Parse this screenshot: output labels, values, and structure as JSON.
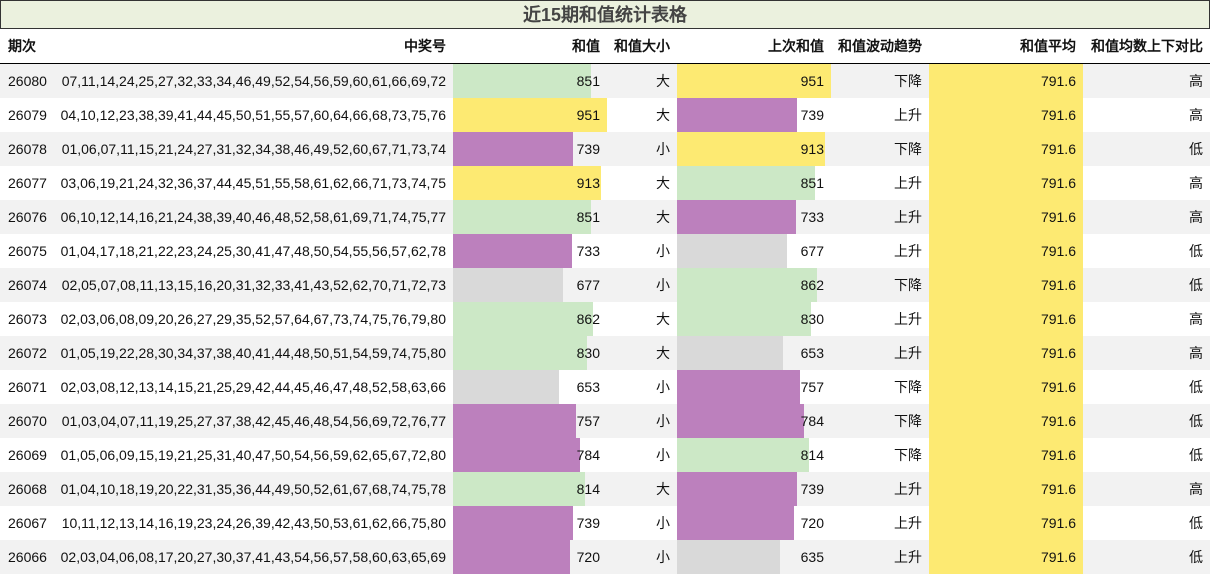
{
  "table": {
    "title": "近15期和值统计表格",
    "headers": [
      "期次",
      "中奖号",
      "和值",
      "和值大小",
      "上次和值",
      "和值波动趋势",
      "和值平均",
      "和值均数上下对比"
    ],
    "rows": [
      [
        26080,
        "07,11,14,24,25,27,32,33,34,46,49,52,54,56,59,60,61,66,69,72",
        851,
        "大",
        951,
        "下降",
        791.6,
        "高"
      ],
      [
        26079,
        "04,10,12,23,38,39,41,44,45,50,51,55,57,60,64,66,68,73,75,76",
        951,
        "大",
        739,
        "上升",
        791.6,
        "高"
      ],
      [
        26078,
        "01,06,07,11,15,21,24,27,31,32,34,38,46,49,52,60,67,71,73,74",
        739,
        "小",
        913,
        "下降",
        791.6,
        "低"
      ],
      [
        26077,
        "03,06,19,21,24,32,36,37,44,45,51,55,58,61,62,66,71,73,74,75",
        913,
        "大",
        851,
        "上升",
        791.6,
        "高"
      ],
      [
        26076,
        "06,10,12,14,16,21,24,38,39,40,46,48,52,58,61,69,71,74,75,77",
        851,
        "大",
        733,
        "上升",
        791.6,
        "高"
      ],
      [
        26075,
        "01,04,17,18,21,22,23,24,25,30,41,47,48,50,54,55,56,57,62,78",
        733,
        "小",
        677,
        "上升",
        791.6,
        "低"
      ],
      [
        26074,
        "02,05,07,08,11,13,15,16,20,31,32,33,41,43,52,62,70,71,72,73",
        677,
        "小",
        862,
        "下降",
        791.6,
        "低"
      ],
      [
        26073,
        "02,03,06,08,09,20,26,27,29,35,52,57,64,67,73,74,75,76,79,80",
        862,
        "大",
        830,
        "上升",
        791.6,
        "高"
      ],
      [
        26072,
        "01,05,19,22,28,30,34,37,38,40,41,44,48,50,51,54,59,74,75,80",
        830,
        "大",
        653,
        "上升",
        791.6,
        "高"
      ],
      [
        26071,
        "02,03,08,12,13,14,15,21,25,29,42,44,45,46,47,48,52,58,63,66",
        653,
        "小",
        757,
        "下降",
        791.6,
        "低"
      ],
      [
        26070,
        "01,03,04,07,11,19,25,27,37,38,42,45,46,48,54,56,69,72,76,77",
        757,
        "小",
        784,
        "下降",
        791.6,
        "低"
      ],
      [
        26069,
        "01,05,06,09,15,19,21,25,31,40,47,50,54,56,59,62,65,67,72,80",
        784,
        "小",
        814,
        "下降",
        791.6,
        "低"
      ],
      [
        26068,
        "01,04,10,18,19,20,22,31,35,36,44,49,50,52,61,67,68,74,75,78",
        814,
        "大",
        739,
        "上升",
        791.6,
        "高"
      ],
      [
        26067,
        "10,11,12,13,14,16,19,23,24,26,39,42,43,50,53,61,62,66,75,80",
        739,
        "小",
        720,
        "上升",
        791.6,
        "低"
      ],
      [
        26066,
        "02,03,04,06,08,17,20,27,30,37,41,43,54,56,57,58,60,63,65,69",
        720,
        "小",
        635,
        "上升",
        791.6,
        "低"
      ]
    ],
    "bar_columns": [
      {
        "column": 2,
        "colors": [
          "#cce8c6",
          "#fdea72",
          "#bc80bd",
          "#fdea72",
          "#cce8c6",
          "#bc80bd",
          "#d9d9d9",
          "#cce8c6",
          "#cce8c6",
          "#d9d9d9",
          "#bc80bd",
          "#bc80bd",
          "#cce8c6",
          "#bc80bd",
          "#bc80bd"
        ]
      },
      {
        "column": 4,
        "colors": [
          "#fdea72",
          "#bc80bd",
          "#fdea72",
          "#cce8c6",
          "#bc80bd",
          "#d9d9d9",
          "#cce8c6",
          "#cce8c6",
          "#d9d9d9",
          "#bc80bd",
          "#bc80bd",
          "#cce8c6",
          "#bc80bd",
          "#bc80bd",
          "#d9d9d9"
        ]
      },
      {
        "column": 6,
        "colors": [
          "#fdea72",
          "#fdea72",
          "#fdea72",
          "#fdea72",
          "#fdea72",
          "#fdea72",
          "#fdea72",
          "#fdea72",
          "#fdea72",
          "#fdea72",
          "#fdea72",
          "#fdea72",
          "#fdea72",
          "#fdea72",
          "#fdea72"
        ]
      }
    ],
    "stripe_color": "#f2f2f2"
  }
}
